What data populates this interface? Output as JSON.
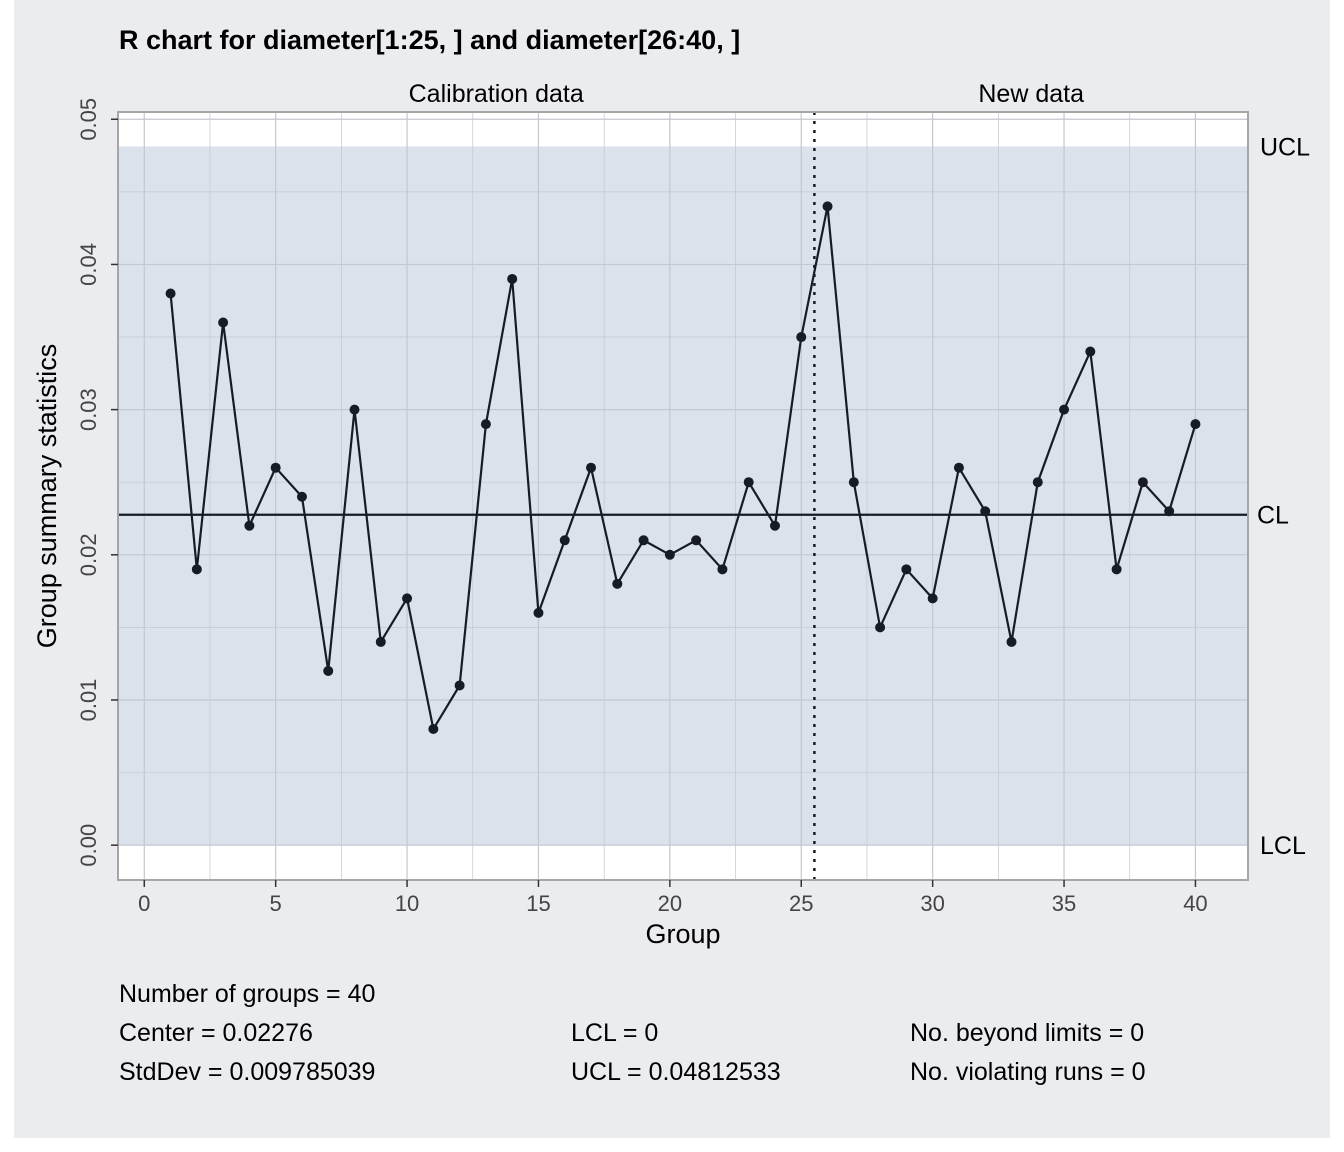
{
  "chart_data": {
    "type": "line",
    "title": "R chart for diameter[1:25, ] and diameter[26:40, ]",
    "xlabel": "Group",
    "ylabel": "Group summary statistics",
    "xlim": [
      -1,
      42
    ],
    "ylim": [
      -0.0024,
      0.0505
    ],
    "xticks": [
      0,
      5,
      10,
      15,
      20,
      25,
      30,
      35,
      40
    ],
    "yticks": [
      0.0,
      0.01,
      0.02,
      0.03,
      0.04,
      0.05
    ],
    "ytick_labels": [
      "0.00",
      "0.01",
      "0.02",
      "0.03",
      "0.04",
      "0.05"
    ],
    "grid": true,
    "sections": [
      {
        "label": "Calibration data"
      },
      {
        "label": "New data"
      }
    ],
    "separator_x": 25.5,
    "limits": {
      "ucl": 0.04812533,
      "ucl_label": "UCL",
      "cl": 0.02276,
      "cl_label": "CL",
      "lcl": 0,
      "lcl_label": "LCL"
    },
    "x": [
      1,
      2,
      3,
      4,
      5,
      6,
      7,
      8,
      9,
      10,
      11,
      12,
      13,
      14,
      15,
      16,
      17,
      18,
      19,
      20,
      21,
      22,
      23,
      24,
      25,
      26,
      27,
      28,
      29,
      30,
      31,
      32,
      33,
      34,
      35,
      36,
      37,
      38,
      39,
      40
    ],
    "values": [
      0.038,
      0.019,
      0.036,
      0.022,
      0.026,
      0.024,
      0.012,
      0.03,
      0.014,
      0.017,
      0.008,
      0.011,
      0.029,
      0.039,
      0.016,
      0.021,
      0.026,
      0.018,
      0.021,
      0.02,
      0.021,
      0.019,
      0.025,
      0.022,
      0.035,
      0.044,
      0.025,
      0.015,
      0.019,
      0.017,
      0.026,
      0.023,
      0.014,
      0.025,
      0.03,
      0.034,
      0.019,
      0.025,
      0.023,
      0.029
    ],
    "colors": {
      "figure_bg": "#ebecf0",
      "plot_bg": "#ffffff",
      "limits_band": "#dce2eb",
      "grid": "#c3c7ce",
      "line": "#161b26",
      "border": "#a6a6a6"
    }
  },
  "stats": {
    "groups": "Number of groups = 40",
    "center": "Center = 0.02276",
    "stddev": "StdDev = 0.009785039",
    "lcl": "LCL = 0",
    "ucl": "UCL = 0.04812533",
    "beyond": "No. beyond limits = 0",
    "violating": "No. violating runs = 0"
  }
}
